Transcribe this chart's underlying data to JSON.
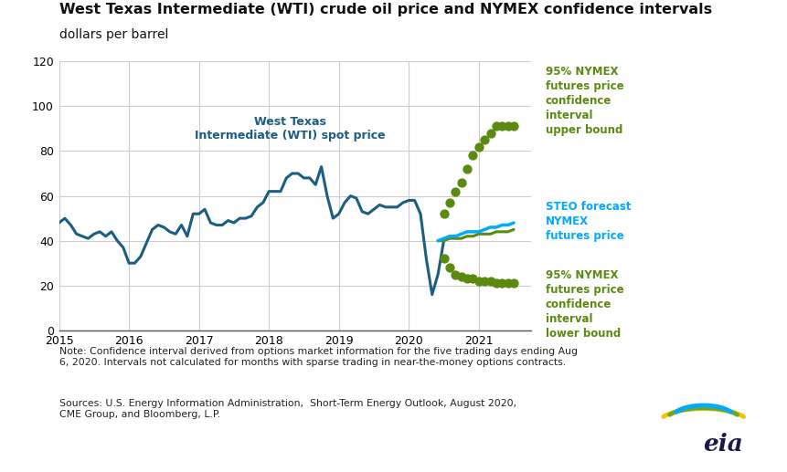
{
  "title_line1": "West Texas Intermediate (WTI) crude oil price and NYMEX confidence intervals",
  "title_line2": "dollars per barrel",
  "title_fontsize": 11.5,
  "subtitle_fontsize": 10,
  "note": "Note: Confidence interval derived from options market information for the five trading days ending Aug\n6, 2020. Intervals not calculated for months with sparse trading in near-the-money options contracts.",
  "sources": "Sources: U.S. Energy Information Administration,  Short-Term Energy Outlook, August 2020,\nCME Group, and Bloomberg, L.P.",
  "wti_color": "#1B5E82",
  "steo_color": "#00AAFF",
  "nymex_color": "#5a8a10",
  "upper_color": "#5a8a10",
  "lower_color": "#5a8a10",
  "background_color": "#ffffff",
  "grid_color": "#cccccc",
  "ylim": [
    0,
    120
  ],
  "yticks": [
    0,
    20,
    40,
    60,
    80,
    100,
    120
  ],
  "wti_x": [
    2015.0,
    2015.083,
    2015.167,
    2015.25,
    2015.333,
    2015.417,
    2015.5,
    2015.583,
    2015.667,
    2015.75,
    2015.833,
    2015.917,
    2016.0,
    2016.083,
    2016.167,
    2016.25,
    2016.333,
    2016.417,
    2016.5,
    2016.583,
    2016.667,
    2016.75,
    2016.833,
    2016.917,
    2017.0,
    2017.083,
    2017.167,
    2017.25,
    2017.333,
    2017.417,
    2017.5,
    2017.583,
    2017.667,
    2017.75,
    2017.833,
    2017.917,
    2018.0,
    2018.083,
    2018.167,
    2018.25,
    2018.333,
    2018.417,
    2018.5,
    2018.583,
    2018.667,
    2018.75,
    2018.833,
    2018.917,
    2019.0,
    2019.083,
    2019.167,
    2019.25,
    2019.333,
    2019.417,
    2019.5,
    2019.583,
    2019.667,
    2019.75,
    2019.833,
    2019.917,
    2020.0,
    2020.083,
    2020.167,
    2020.25,
    2020.333,
    2020.417,
    2020.5
  ],
  "wti_y": [
    48,
    50,
    47,
    43,
    42,
    41,
    43,
    44,
    42,
    44,
    40,
    37,
    30,
    30,
    33,
    39,
    45,
    47,
    46,
    44,
    43,
    47,
    42,
    52,
    52,
    54,
    48,
    47,
    47,
    49,
    48,
    50,
    50,
    51,
    55,
    57,
    62,
    62,
    62,
    68,
    70,
    70,
    68,
    68,
    65,
    73,
    60,
    50,
    52,
    57,
    60,
    59,
    53,
    52,
    54,
    56,
    55,
    55,
    55,
    57,
    58,
    58,
    52,
    32,
    16,
    25,
    40
  ],
  "steo_x": [
    2020.417,
    2020.5,
    2020.583,
    2020.667,
    2020.75,
    2020.833,
    2020.917,
    2021.0,
    2021.083,
    2021.167,
    2021.25,
    2021.333,
    2021.417,
    2021.5
  ],
  "steo_y": [
    40,
    41,
    42,
    42,
    43,
    44,
    44,
    44,
    45,
    46,
    46,
    47,
    47,
    48
  ],
  "nymex_x": [
    2020.417,
    2020.5,
    2020.583,
    2020.667,
    2020.75,
    2020.833,
    2020.917,
    2021.0,
    2021.083,
    2021.167,
    2021.25,
    2021.333,
    2021.417,
    2021.5
  ],
  "nymex_y": [
    40,
    40,
    41,
    41,
    41,
    42,
    42,
    43,
    43,
    43,
    44,
    44,
    44,
    45
  ],
  "upper_x": [
    2020.5,
    2020.583,
    2020.667,
    2020.75,
    2020.833,
    2020.917,
    2021.0,
    2021.083,
    2021.167,
    2021.25,
    2021.333,
    2021.417,
    2021.5
  ],
  "upper_y": [
    52,
    57,
    62,
    66,
    72,
    78,
    82,
    85,
    88,
    91,
    91,
    91,
    91
  ],
  "lower_x": [
    2020.5,
    2020.583,
    2020.667,
    2020.75,
    2020.833,
    2020.917,
    2021.0,
    2021.083,
    2021.167,
    2021.25,
    2021.333,
    2021.417,
    2021.5
  ],
  "lower_y": [
    32,
    28,
    25,
    24,
    23,
    23,
    22,
    22,
    22,
    21,
    21,
    21,
    21
  ],
  "label_wti": "West Texas\nIntermediate (WTI) spot price",
  "label_upper": "95% NYMEX\nfutures price\nconfidence\ninterval\nupper bound",
  "label_steo": "STEO forecast\nNYMEX\nfutures price",
  "label_lower": "95% NYMEX\nfutures price\nconfidence\ninterval\nlower bound",
  "xlim_left": 2015.0,
  "xlim_right": 2021.75
}
